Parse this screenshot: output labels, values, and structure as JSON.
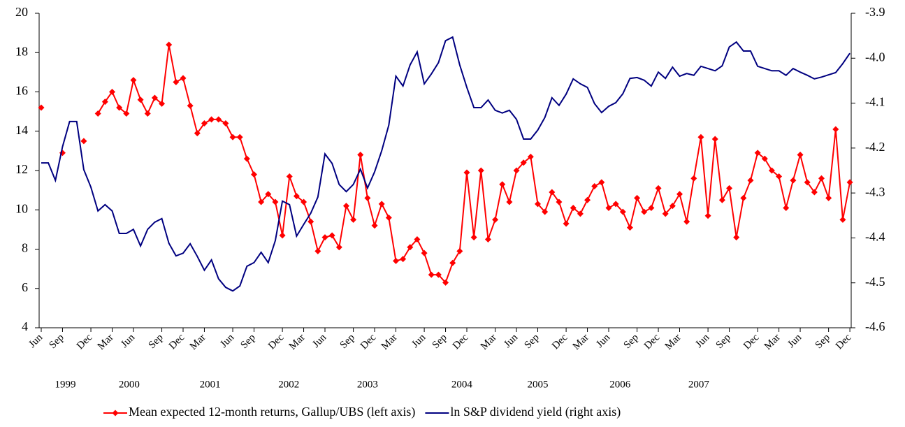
{
  "chart_data": {
    "type": "line",
    "categories": [
      "Jun",
      null,
      null,
      "Sep",
      null,
      null,
      null,
      "Dec",
      null,
      null,
      "Mar",
      null,
      null,
      "Jun",
      null,
      null,
      null,
      "Sep",
      null,
      null,
      "Dec",
      null,
      null,
      "Mar",
      null,
      null,
      null,
      "Jun",
      null,
      null,
      "Sep",
      null,
      null,
      null,
      "Dec",
      null,
      null,
      "Mar",
      null,
      null,
      "Jun",
      null,
      null,
      null,
      "Sep",
      null,
      null,
      "Dec",
      null,
      null,
      "Mar",
      null,
      null,
      null,
      "Jun",
      null,
      null,
      "Sep",
      null,
      null,
      "Dec",
      null,
      null,
      null,
      "Mar",
      null,
      null,
      "Jun",
      null,
      null,
      "Sep",
      null,
      null,
      null,
      "Dec",
      null,
      null,
      "Mar",
      null,
      null,
      "Jun",
      null,
      null,
      null,
      "Sep",
      null,
      null,
      "Dec",
      null,
      null,
      "Mar",
      null,
      null,
      null,
      "Jun",
      null,
      null,
      "Sep",
      null,
      null,
      null,
      "Dec",
      null,
      null,
      "Mar",
      null,
      null,
      "Jun",
      null,
      null,
      null,
      "Sep",
      null,
      null,
      "Dec"
    ],
    "years": [
      "1999",
      "2000",
      "2001",
      "2002",
      "2003",
      "2004",
      "2005",
      "2006",
      "2007"
    ],
    "series": [
      {
        "name": "Mean expected 12-month returns, Gallup/UBS (left axis)",
        "color": "#ff0000",
        "marker": "diamond",
        "axis": "y",
        "values": [
          15.2,
          null,
          null,
          12.9,
          null,
          null,
          13.5,
          null,
          14.9,
          15.5,
          16.0,
          15.2,
          14.9,
          16.6,
          15.6,
          14.9,
          15.7,
          15.4,
          18.4,
          16.5,
          16.7,
          15.3,
          13.9,
          14.4,
          14.6,
          14.6,
          14.4,
          13.7,
          13.7,
          12.6,
          11.8,
          10.4,
          10.8,
          10.4,
          8.7,
          11.7,
          10.7,
          10.4,
          9.4,
          7.9,
          8.6,
          8.7,
          8.1,
          10.2,
          9.5,
          12.8,
          10.6,
          9.2,
          10.3,
          9.6,
          7.4,
          7.5,
          8.1,
          8.5,
          7.8,
          6.7,
          6.7,
          6.3,
          7.3,
          7.9,
          11.9,
          8.6,
          12.0,
          8.5,
          9.5,
          11.3,
          10.4,
          12.0,
          12.4,
          12.7,
          10.3,
          9.9,
          10.9,
          10.4,
          9.3,
          10.1,
          9.8,
          10.5,
          11.2,
          11.4,
          10.1,
          10.3,
          9.9,
          9.1,
          10.6,
          9.9,
          10.1,
          11.1,
          9.8,
          10.2,
          10.8,
          9.4,
          11.6,
          13.7,
          9.7,
          13.6,
          10.5,
          11.1,
          8.6,
          10.6,
          11.5,
          12.9,
          12.6,
          12.0,
          11.7,
          10.1,
          11.5,
          12.8,
          11.4,
          10.9,
          11.6,
          10.6,
          14.1,
          9.5,
          11.4
        ]
      },
      {
        "name": "ln S&P dividend yield (right axis)",
        "color": "#000080",
        "axis": "y2",
        "values": [
          -4.233,
          -4.233,
          -4.272,
          -4.197,
          -4.141,
          -4.141,
          -4.248,
          -4.287,
          -4.34,
          -4.326,
          -4.34,
          -4.39,
          -4.39,
          -4.381,
          -4.418,
          -4.381,
          -4.365,
          -4.357,
          -4.412,
          -4.44,
          -4.434,
          -4.413,
          -4.441,
          -4.472,
          -4.449,
          -4.491,
          -4.51,
          -4.518,
          -4.507,
          -4.463,
          -4.455,
          -4.432,
          -4.455,
          -4.406,
          -4.318,
          -4.326,
          -4.396,
          -4.37,
          -4.345,
          -4.309,
          -4.213,
          -4.234,
          -4.281,
          -4.297,
          -4.281,
          -4.247,
          -4.289,
          -4.253,
          -4.206,
          -4.149,
          -4.04,
          -4.062,
          -4.015,
          -3.986,
          -4.057,
          -4.035,
          -4.01,
          -3.961,
          -3.953,
          -4.015,
          -4.065,
          -4.11,
          -4.11,
          -4.093,
          -4.116,
          -4.122,
          -4.116,
          -4.136,
          -4.18,
          -4.18,
          -4.16,
          -4.132,
          -4.088,
          -4.105,
          -4.08,
          -4.046,
          -4.057,
          -4.065,
          -4.101,
          -4.121,
          -4.107,
          -4.099,
          -4.079,
          -4.045,
          -4.043,
          -4.049,
          -4.062,
          -4.031,
          -4.045,
          -4.02,
          -4.04,
          -4.034,
          -4.038,
          -4.018,
          -4.023,
          -4.028,
          -4.017,
          -3.975,
          -3.964,
          -3.984,
          -3.984,
          -4.018,
          -4.023,
          -4.028,
          -4.028,
          -4.038,
          -4.023,
          -4.031,
          -4.038,
          -4.046,
          -4.042,
          -4.037,
          -4.032,
          -4.012,
          -3.989
        ]
      }
    ],
    "ylim": [
      4,
      20
    ],
    "yticks": [
      4,
      6,
      8,
      10,
      12,
      14,
      16,
      18,
      20
    ],
    "y2lim": [
      -4.6,
      -3.9
    ],
    "y2ticks": [
      {
        "value": -4.6,
        "label": "-4.6"
      },
      {
        "value": -4.5,
        "label": "-4.5"
      },
      {
        "value": -4.4,
        "label": "-4.4"
      },
      {
        "value": -4.3,
        "label": "-4.3"
      },
      {
        "value": -4.2,
        "label": "-4.2"
      },
      {
        "value": -4.1,
        "label": "-4.1"
      },
      {
        "value": -4,
        "label": "-4.0"
      },
      {
        "value": -3.9,
        "label": "-3.9"
      }
    ],
    "grid": false,
    "legend": "bottom"
  }
}
